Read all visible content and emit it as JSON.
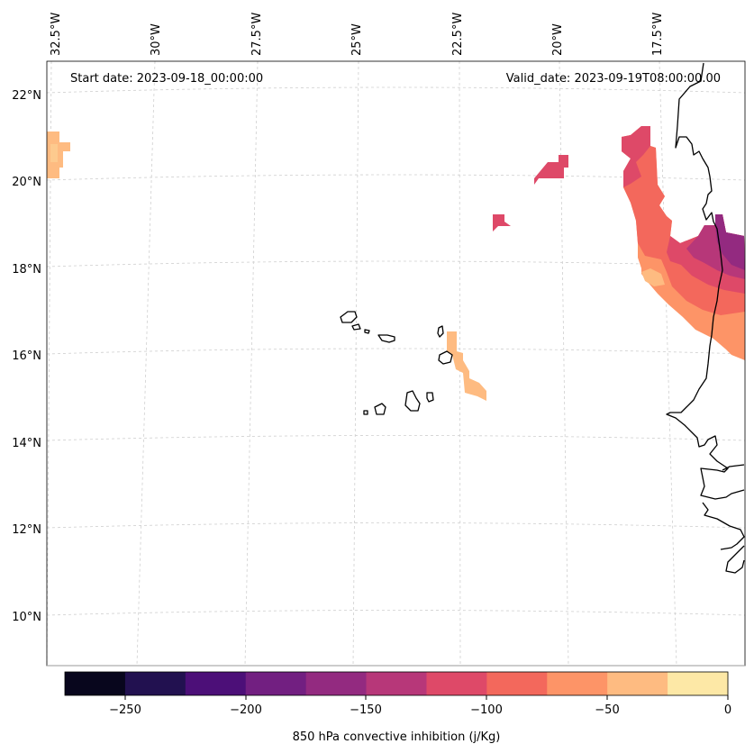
{
  "map": {
    "start_date_text": "Start date: 2023-09-18_00:00:00",
    "valid_date_text": "Valid_date: 2023-09-19T08:00:00.00",
    "lon_labels": [
      "32.5°W",
      "30°W",
      "27.5°W",
      "25°W",
      "22.5°W",
      "20°W",
      "17.5°W"
    ],
    "lat_labels": [
      "22°N",
      "20°N",
      "18°N",
      "16°N",
      "14°N",
      "12°N",
      "10°N"
    ]
  },
  "colorbar": {
    "label": "850 hPa convective inhibition (j/Kg)",
    "tick_labels": [
      "−250",
      "−200",
      "−150",
      "−100",
      "−50",
      "0"
    ],
    "range": [
      -275,
      0
    ],
    "bins": [
      {
        "from": -275,
        "to": -250,
        "color": "#08061d"
      },
      {
        "from": -250,
        "to": -225,
        "color": "#221150"
      },
      {
        "from": -225,
        "to": -200,
        "color": "#4c0f78"
      },
      {
        "from": -200,
        "to": -175,
        "color": "#721f81"
      },
      {
        "from": -175,
        "to": -150,
        "color": "#932a80"
      },
      {
        "from": -150,
        "to": -125,
        "color": "#b73779"
      },
      {
        "from": -125,
        "to": -100,
        "color": "#de4968"
      },
      {
        "from": -100,
        "to": -75,
        "color": "#f3685c"
      },
      {
        "from": -75,
        "to": -50,
        "color": "#fd9467"
      },
      {
        "from": -50,
        "to": -25,
        "color": "#febb81"
      },
      {
        "from": -25,
        "to": 0,
        "color": "#fde8a6"
      }
    ]
  }
}
